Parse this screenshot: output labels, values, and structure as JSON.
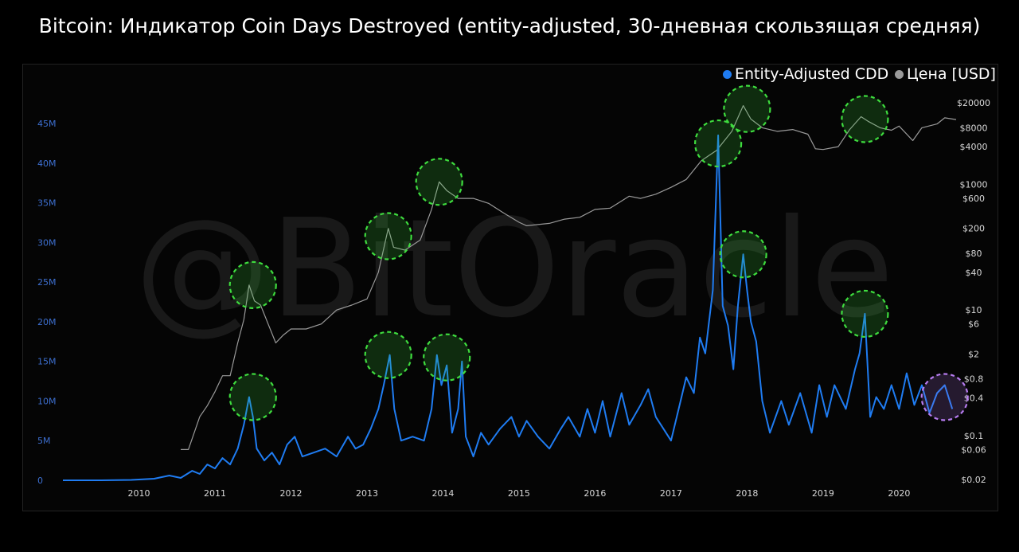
{
  "title": "Bitcoin: Индикатор Coin Days Destroyed (entity-adjusted, 30-дневная скользящая средняя)",
  "watermark": "@BitOracle",
  "legend": [
    {
      "label": "Entity-Adjusted CDD",
      "color": "#1f7cf2"
    },
    {
      "label": "Цена [USD]",
      "color": "#9a9a9a"
    }
  ],
  "chart_data": {
    "type": "line",
    "x_axis": {
      "range": [
        2009.0,
        2020.75
      ],
      "ticks": [
        "2010",
        "2011",
        "2012",
        "2013",
        "2014",
        "2015",
        "2016",
        "2017",
        "2018",
        "2019",
        "2020"
      ]
    },
    "y_left": {
      "range": [
        0,
        48000000
      ],
      "ticks": [
        {
          "v": 0,
          "label": "0"
        },
        {
          "v": 5000000,
          "label": "5M"
        },
        {
          "v": 10000000,
          "label": "10M"
        },
        {
          "v": 15000000,
          "label": "15M"
        },
        {
          "v": 20000000,
          "label": "20M"
        },
        {
          "v": 25000000,
          "label": "25M"
        },
        {
          "v": 30000000,
          "label": "30M"
        },
        {
          "v": 35000000,
          "label": "35M"
        },
        {
          "v": 40000000,
          "label": "40M"
        },
        {
          "v": 45000000,
          "label": "45M"
        }
      ]
    },
    "y_right": {
      "scale": "log",
      "range": [
        0.02,
        30000
      ],
      "ticks": [
        {
          "v": 20000,
          "label": "$20000"
        },
        {
          "v": 8000,
          "label": "$8000"
        },
        {
          "v": 4000,
          "label": "$4000"
        },
        {
          "v": 1000,
          "label": "$1000"
        },
        {
          "v": 600,
          "label": "$600"
        },
        {
          "v": 200,
          "label": "$200"
        },
        {
          "v": 80,
          "label": "$80"
        },
        {
          "v": 40,
          "label": "$40"
        },
        {
          "v": 10,
          "label": "$10"
        },
        {
          "v": 6,
          "label": "$6"
        },
        {
          "v": 2,
          "label": "$2"
        },
        {
          "v": 0.8,
          "label": "$0.8"
        },
        {
          "v": 0.4,
          "label": "$0.4"
        },
        {
          "v": 0.1,
          "label": "$0.1"
        },
        {
          "v": 0.06,
          "label": "$0.06"
        },
        {
          "v": 0.02,
          "label": "$0.02"
        }
      ]
    },
    "series": [
      {
        "name": "Entity-Adjusted CDD",
        "color": "#1f7cf2",
        "axis": "left",
        "points": [
          [
            2009.0,
            0
          ],
          [
            2009.5,
            0
          ],
          [
            2009.9,
            50000
          ],
          [
            2010.2,
            200000
          ],
          [
            2010.4,
            600000
          ],
          [
            2010.55,
            300000
          ],
          [
            2010.7,
            1200000
          ],
          [
            2010.8,
            800000
          ],
          [
            2010.9,
            2000000
          ],
          [
            2011.0,
            1500000
          ],
          [
            2011.1,
            2800000
          ],
          [
            2011.2,
            2000000
          ],
          [
            2011.3,
            4000000
          ],
          [
            2011.38,
            7000000
          ],
          [
            2011.45,
            10500000
          ],
          [
            2011.5,
            8000000
          ],
          [
            2011.55,
            4000000
          ],
          [
            2011.65,
            2500000
          ],
          [
            2011.75,
            3500000
          ],
          [
            2011.85,
            2000000
          ],
          [
            2011.95,
            4500000
          ],
          [
            2012.05,
            5500000
          ],
          [
            2012.15,
            3000000
          ],
          [
            2012.3,
            3500000
          ],
          [
            2012.45,
            4000000
          ],
          [
            2012.6,
            3000000
          ],
          [
            2012.75,
            5500000
          ],
          [
            2012.85,
            4000000
          ],
          [
            2012.95,
            4500000
          ],
          [
            2013.05,
            6500000
          ],
          [
            2013.15,
            9000000
          ],
          [
            2013.22,
            12000000
          ],
          [
            2013.3,
            15800000
          ],
          [
            2013.36,
            9000000
          ],
          [
            2013.45,
            5000000
          ],
          [
            2013.6,
            5500000
          ],
          [
            2013.75,
            5000000
          ],
          [
            2013.85,
            9000000
          ],
          [
            2013.92,
            15800000
          ],
          [
            2013.98,
            12000000
          ],
          [
            2014.05,
            14500000
          ],
          [
            2014.12,
            6000000
          ],
          [
            2014.2,
            9000000
          ],
          [
            2014.25,
            15000000
          ],
          [
            2014.3,
            5500000
          ],
          [
            2014.4,
            3000000
          ],
          [
            2014.5,
            6000000
          ],
          [
            2014.6,
            4500000
          ],
          [
            2014.75,
            6500000
          ],
          [
            2014.9,
            8000000
          ],
          [
            2015.0,
            5500000
          ],
          [
            2015.1,
            7500000
          ],
          [
            2015.25,
            5500000
          ],
          [
            2015.4,
            4000000
          ],
          [
            2015.55,
            6500000
          ],
          [
            2015.65,
            8000000
          ],
          [
            2015.8,
            5500000
          ],
          [
            2015.9,
            9000000
          ],
          [
            2016.0,
            6000000
          ],
          [
            2016.1,
            10000000
          ],
          [
            2016.2,
            5500000
          ],
          [
            2016.35,
            11000000
          ],
          [
            2016.45,
            7000000
          ],
          [
            2016.6,
            9500000
          ],
          [
            2016.7,
            11500000
          ],
          [
            2016.8,
            8000000
          ],
          [
            2016.9,
            6500000
          ],
          [
            2017.0,
            5000000
          ],
          [
            2017.1,
            9000000
          ],
          [
            2017.2,
            13000000
          ],
          [
            2017.3,
            11000000
          ],
          [
            2017.38,
            18000000
          ],
          [
            2017.45,
            16000000
          ],
          [
            2017.55,
            24000000
          ],
          [
            2017.62,
            43500000
          ],
          [
            2017.68,
            22000000
          ],
          [
            2017.75,
            19500000
          ],
          [
            2017.82,
            14000000
          ],
          [
            2017.88,
            22000000
          ],
          [
            2017.95,
            28500000
          ],
          [
            2018.0,
            24000000
          ],
          [
            2018.05,
            20000000
          ],
          [
            2018.12,
            17500000
          ],
          [
            2018.2,
            10000000
          ],
          [
            2018.3,
            6000000
          ],
          [
            2018.45,
            10000000
          ],
          [
            2018.55,
            7000000
          ],
          [
            2018.7,
            11000000
          ],
          [
            2018.85,
            6000000
          ],
          [
            2018.95,
            12000000
          ],
          [
            2019.05,
            8000000
          ],
          [
            2019.15,
            12000000
          ],
          [
            2019.3,
            9000000
          ],
          [
            2019.42,
            14000000
          ],
          [
            2019.48,
            16000000
          ],
          [
            2019.55,
            21000000
          ],
          [
            2019.62,
            8000000
          ],
          [
            2019.7,
            10500000
          ],
          [
            2019.8,
            9000000
          ],
          [
            2019.9,
            12000000
          ],
          [
            2020.0,
            9000000
          ],
          [
            2020.1,
            13500000
          ],
          [
            2020.2,
            9500000
          ],
          [
            2020.3,
            12000000
          ],
          [
            2020.4,
            8500000
          ],
          [
            2020.5,
            11000000
          ],
          [
            2020.6,
            12000000
          ],
          [
            2020.7,
            9000000
          ]
        ]
      },
      {
        "name": "Цена [USD]",
        "color": "#9a9a9a",
        "axis": "right",
        "points": [
          [
            2010.55,
            0.06
          ],
          [
            2010.65,
            0.06
          ],
          [
            2010.8,
            0.2
          ],
          [
            2010.9,
            0.3
          ],
          [
            2011.0,
            0.5
          ],
          [
            2011.1,
            0.9
          ],
          [
            2011.2,
            0.9
          ],
          [
            2011.3,
            3
          ],
          [
            2011.38,
            7
          ],
          [
            2011.45,
            25
          ],
          [
            2011.52,
            14
          ],
          [
            2011.6,
            12
          ],
          [
            2011.7,
            6
          ],
          [
            2011.8,
            3
          ],
          [
            2011.9,
            4
          ],
          [
            2012.0,
            5
          ],
          [
            2012.2,
            5
          ],
          [
            2012.4,
            6
          ],
          [
            2012.6,
            10
          ],
          [
            2012.8,
            12
          ],
          [
            2013.0,
            15
          ],
          [
            2013.15,
            40
          ],
          [
            2013.28,
            200
          ],
          [
            2013.35,
            100
          ],
          [
            2013.5,
            90
          ],
          [
            2013.7,
            130
          ],
          [
            2013.85,
            400
          ],
          [
            2013.95,
            1100
          ],
          [
            2014.05,
            800
          ],
          [
            2014.2,
            600
          ],
          [
            2014.4,
            600
          ],
          [
            2014.6,
            500
          ],
          [
            2014.8,
            350
          ],
          [
            2015.0,
            250
          ],
          [
            2015.1,
            220
          ],
          [
            2015.4,
            240
          ],
          [
            2015.6,
            280
          ],
          [
            2015.8,
            300
          ],
          [
            2016.0,
            400
          ],
          [
            2016.2,
            420
          ],
          [
            2016.45,
            650
          ],
          [
            2016.6,
            600
          ],
          [
            2016.8,
            700
          ],
          [
            2017.0,
            900
          ],
          [
            2017.2,
            1200
          ],
          [
            2017.4,
            2400
          ],
          [
            2017.6,
            3500
          ],
          [
            2017.8,
            7000
          ],
          [
            2017.95,
            18000
          ],
          [
            2018.05,
            11000
          ],
          [
            2018.2,
            8000
          ],
          [
            2018.4,
            7000
          ],
          [
            2018.6,
            7500
          ],
          [
            2018.8,
            6300
          ],
          [
            2018.9,
            3700
          ],
          [
            2019.0,
            3600
          ],
          [
            2019.2,
            4000
          ],
          [
            2019.35,
            7500
          ],
          [
            2019.5,
            12000
          ],
          [
            2019.6,
            10000
          ],
          [
            2019.75,
            8000
          ],
          [
            2019.9,
            7300
          ],
          [
            2020.0,
            8500
          ],
          [
            2020.18,
            5000
          ],
          [
            2020.3,
            8000
          ],
          [
            2020.5,
            9200
          ],
          [
            2020.6,
            11500
          ],
          [
            2020.75,
            10800
          ]
        ]
      }
    ],
    "highlights": [
      {
        "x": 2011.5,
        "y_left": 10500000,
        "color": "#3edc3e"
      },
      {
        "x": 2011.5,
        "price": 25,
        "color": "#3edc3e"
      },
      {
        "x": 2013.28,
        "y_left": 15800000,
        "color": "#3edc3e"
      },
      {
        "x": 2013.28,
        "price": 150,
        "color": "#3edc3e"
      },
      {
        "x": 2014.05,
        "y_left": 15500000,
        "color": "#3edc3e"
      },
      {
        "x": 2013.95,
        "price": 1100,
        "color": "#3edc3e"
      },
      {
        "x": 2017.62,
        "price": 4500,
        "color": "#3edc3e"
      },
      {
        "x": 2018.0,
        "price": 16000,
        "color": "#3edc3e"
      },
      {
        "x": 2017.95,
        "y_left": 28500000,
        "color": "#3edc3e"
      },
      {
        "x": 2019.55,
        "price": 11000,
        "color": "#3edc3e"
      },
      {
        "x": 2019.55,
        "y_left": 21000000,
        "color": "#3edc3e"
      },
      {
        "x": 2020.6,
        "y_left": 10500000,
        "color": "#b77cf0"
      }
    ]
  }
}
